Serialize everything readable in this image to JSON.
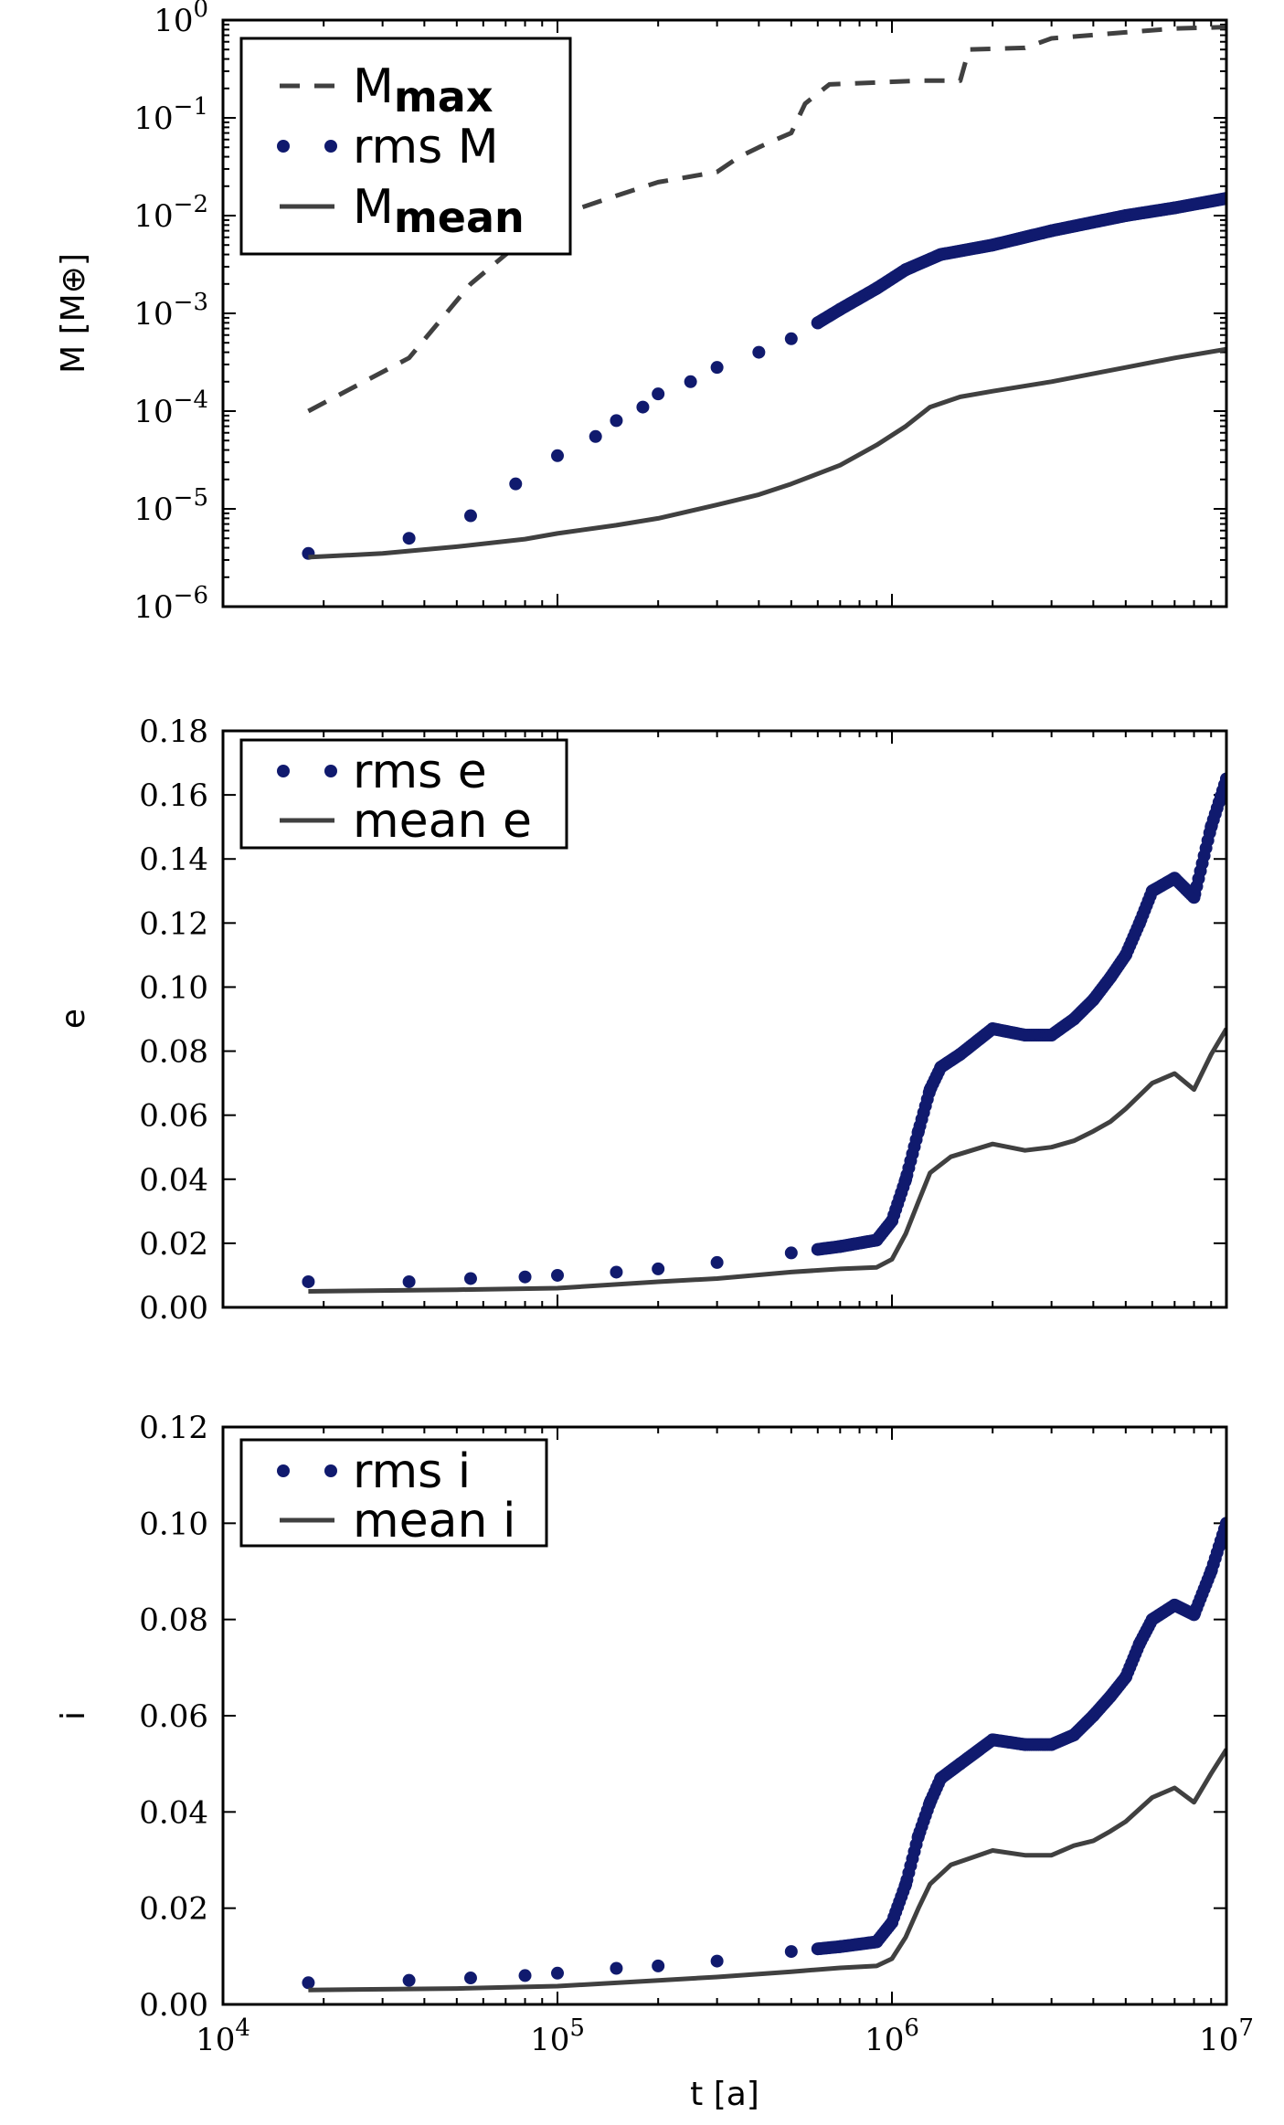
{
  "chart_data": [
    {
      "type": "line",
      "panel": "mass",
      "ylabel": "M [M⊕]",
      "xlabel": "",
      "x_scale": "log",
      "y_scale": "log",
      "xlim": [
        10000,
        10000000
      ],
      "ylim": [
        1e-06,
        1
      ],
      "x_ticks": [
        10000,
        100000,
        1000000,
        10000000
      ],
      "x_tick_labels": [
        "",
        "",
        "",
        ""
      ],
      "y_ticks": [
        1e-06,
        1e-05,
        0.0001,
        0.001,
        0.01,
        0.1,
        1
      ],
      "y_tick_labels": [
        {
          "base": "10",
          "exp": "−6"
        },
        {
          "base": "10",
          "exp": "−5"
        },
        {
          "base": "10",
          "exp": "−4"
        },
        {
          "base": "10",
          "exp": "−3"
        },
        {
          "base": "10",
          "exp": "−2"
        },
        {
          "base": "10",
          "exp": "−1"
        },
        {
          "base": "10",
          "exp": "0"
        }
      ],
      "legend_position": "top-left",
      "series": [
        {
          "name": "M",
          "name_sub": "max",
          "style": "dashed",
          "color": "#404040",
          "x": [
            18000,
            36000,
            55000,
            70000,
            100000,
            150000,
            200000,
            300000,
            350000,
            400000,
            450000,
            500000,
            550000,
            650000,
            900000,
            1200000,
            1600000,
            1700000,
            2500000,
            3000000,
            5000000,
            7000000,
            10000000
          ],
          "y": [
            0.0001,
            0.00035,
            0.002,
            0.004,
            0.01,
            0.016,
            0.022,
            0.028,
            0.04,
            0.05,
            0.06,
            0.07,
            0.14,
            0.22,
            0.23,
            0.24,
            0.24,
            0.5,
            0.52,
            0.65,
            0.75,
            0.82,
            0.85
          ]
        },
        {
          "name": "rms M",
          "style": "dots",
          "color": "#101a6e",
          "x": [
            18000,
            36000,
            55000,
            75000,
            100000,
            130000,
            150000,
            180000,
            200000,
            250000,
            300000,
            400000,
            500000,
            600000,
            700000,
            900000,
            1100000,
            1400000,
            2000000,
            3000000,
            5000000,
            7000000,
            10000000
          ],
          "y": [
            3.5e-06,
            5e-06,
            8.5e-06,
            1.8e-05,
            3.5e-05,
            5.5e-05,
            8e-05,
            0.00011,
            0.00015,
            0.0002,
            0.00028,
            0.0004,
            0.00055,
            0.0008,
            0.0011,
            0.0018,
            0.0028,
            0.004,
            0.005,
            0.007,
            0.01,
            0.012,
            0.015
          ]
        },
        {
          "name": "M",
          "name_sub": "mean",
          "style": "solid",
          "color": "#404040",
          "x": [
            18000,
            30000,
            50000,
            80000,
            100000,
            150000,
            200000,
            300000,
            400000,
            500000,
            700000,
            900000,
            1100000,
            1300000,
            1600000,
            2000000,
            3000000,
            5000000,
            7000000,
            10000000
          ],
          "y": [
            3.2e-06,
            3.5e-06,
            4.1e-06,
            4.9e-06,
            5.6e-06,
            6.8e-06,
            8e-06,
            1.1e-05,
            1.4e-05,
            1.8e-05,
            2.8e-05,
            4.5e-05,
            7e-05,
            0.00011,
            0.00014,
            0.00016,
            0.0002,
            0.00028,
            0.00035,
            0.00043
          ]
        }
      ]
    },
    {
      "type": "line",
      "panel": "eccentricity",
      "ylabel": "e",
      "xlabel": "",
      "x_scale": "log",
      "y_scale": "linear",
      "xlim": [
        10000,
        10000000
      ],
      "ylim": [
        0,
        0.18
      ],
      "x_ticks": [
        10000,
        100000,
        1000000,
        10000000
      ],
      "x_tick_labels": [
        "",
        "",
        "",
        ""
      ],
      "y_ticks": [
        0,
        0.02,
        0.04,
        0.06,
        0.08,
        0.1,
        0.12,
        0.14,
        0.16,
        0.18
      ],
      "y_tick_labels": [
        "0.00",
        "0.02",
        "0.04",
        "0.06",
        "0.08",
        "0.10",
        "0.12",
        "0.14",
        "0.16",
        "0.18"
      ],
      "legend_position": "top-left",
      "series": [
        {
          "name": "rms e",
          "style": "dots",
          "color": "#101a6e",
          "x": [
            18000,
            36000,
            55000,
            80000,
            100000,
            150000,
            200000,
            300000,
            500000,
            700000,
            900000,
            1000000,
            1100000,
            1200000,
            1300000,
            1400000,
            1600000,
            2000000,
            2500000,
            3000000,
            3500000,
            4000000,
            4500000,
            5000000,
            5500000,
            6000000,
            7000000,
            8000000,
            9000000,
            10000000
          ],
          "y": [
            0.008,
            0.008,
            0.009,
            0.0095,
            0.01,
            0.011,
            0.012,
            0.014,
            0.017,
            0.019,
            0.021,
            0.027,
            0.04,
            0.055,
            0.068,
            0.075,
            0.079,
            0.087,
            0.085,
            0.085,
            0.09,
            0.096,
            0.103,
            0.11,
            0.12,
            0.13,
            0.134,
            0.128,
            0.15,
            0.165
          ]
        },
        {
          "name": "mean e",
          "style": "solid",
          "color": "#404040",
          "x": [
            18000,
            50000,
            100000,
            200000,
            300000,
            500000,
            700000,
            900000,
            1000000,
            1100000,
            1200000,
            1300000,
            1500000,
            2000000,
            2500000,
            3000000,
            3500000,
            4000000,
            4500000,
            5000000,
            6000000,
            7000000,
            8000000,
            9000000,
            10000000
          ],
          "y": [
            0.005,
            0.0055,
            0.006,
            0.008,
            0.009,
            0.011,
            0.012,
            0.0125,
            0.015,
            0.023,
            0.033,
            0.042,
            0.047,
            0.051,
            0.049,
            0.05,
            0.052,
            0.055,
            0.058,
            0.062,
            0.07,
            0.073,
            0.068,
            0.079,
            0.087
          ]
        }
      ]
    },
    {
      "type": "line",
      "panel": "inclination",
      "ylabel": "i",
      "xlabel": "t [a]",
      "x_scale": "log",
      "y_scale": "linear",
      "xlim": [
        10000,
        10000000
      ],
      "ylim": [
        0,
        0.12
      ],
      "x_ticks": [
        10000,
        100000,
        1000000,
        10000000
      ],
      "x_tick_labels": [
        {
          "base": "10",
          "exp": "4"
        },
        {
          "base": "10",
          "exp": "5"
        },
        {
          "base": "10",
          "exp": "6"
        },
        {
          "base": "10",
          "exp": "7"
        }
      ],
      "y_ticks": [
        0,
        0.02,
        0.04,
        0.06,
        0.08,
        0.1,
        0.12
      ],
      "y_tick_labels": [
        "0.00",
        "0.02",
        "0.04",
        "0.06",
        "0.08",
        "0.10",
        "0.12"
      ],
      "legend_position": "top-left",
      "series": [
        {
          "name": "rms i",
          "style": "dots",
          "color": "#101a6e",
          "x": [
            18000,
            36000,
            55000,
            80000,
            100000,
            150000,
            200000,
            300000,
            500000,
            700000,
            900000,
            1000000,
            1100000,
            1200000,
            1300000,
            1400000,
            1600000,
            2000000,
            2500000,
            3000000,
            3500000,
            4000000,
            4500000,
            5000000,
            5500000,
            6000000,
            7000000,
            8000000,
            9000000,
            10000000
          ],
          "y": [
            0.0045,
            0.005,
            0.0055,
            0.006,
            0.0065,
            0.0075,
            0.008,
            0.009,
            0.011,
            0.012,
            0.013,
            0.017,
            0.025,
            0.035,
            0.042,
            0.047,
            0.05,
            0.055,
            0.054,
            0.054,
            0.056,
            0.06,
            0.064,
            0.068,
            0.075,
            0.08,
            0.083,
            0.081,
            0.09,
            0.1
          ]
        },
        {
          "name": "mean i",
          "style": "solid",
          "color": "#404040",
          "x": [
            18000,
            50000,
            100000,
            200000,
            300000,
            500000,
            700000,
            900000,
            1000000,
            1100000,
            1200000,
            1300000,
            1500000,
            2000000,
            2500000,
            3000000,
            3500000,
            4000000,
            4500000,
            5000000,
            6000000,
            7000000,
            8000000,
            9000000,
            10000000
          ],
          "y": [
            0.003,
            0.0033,
            0.0038,
            0.005,
            0.0057,
            0.0068,
            0.0076,
            0.008,
            0.0095,
            0.014,
            0.02,
            0.025,
            0.029,
            0.032,
            0.031,
            0.031,
            0.033,
            0.034,
            0.036,
            0.038,
            0.043,
            0.045,
            0.042,
            0.048,
            0.053
          ]
        }
      ]
    }
  ]
}
